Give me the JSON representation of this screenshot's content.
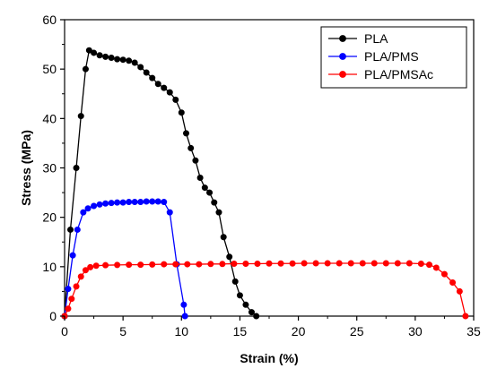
{
  "chart_data": {
    "type": "line",
    "title": "",
    "xlabel": "Strain (%)",
    "ylabel": "Stress (MPa)",
    "xlim": [
      0,
      35
    ],
    "ylim": [
      0,
      60
    ],
    "x_ticks": [
      "0",
      "5",
      "10",
      "15",
      "20",
      "25",
      "30",
      "35"
    ],
    "y_ticks": [
      "0",
      "10",
      "20",
      "30",
      "40",
      "50",
      "60"
    ],
    "grid": false,
    "legend_position": "top-right",
    "markers": "filled circles",
    "series": [
      {
        "name": "PLA",
        "color": "#000000",
        "points": [
          [
            0,
            0
          ],
          [
            0.5,
            17.5
          ],
          [
            1.0,
            30
          ],
          [
            1.4,
            40.5
          ],
          [
            1.8,
            50
          ],
          [
            2.1,
            53.8
          ],
          [
            2.5,
            53.3
          ],
          [
            3.0,
            52.8
          ],
          [
            3.5,
            52.5
          ],
          [
            4.0,
            52.3
          ],
          [
            4.5,
            52.0
          ],
          [
            5.0,
            51.9
          ],
          [
            5.5,
            51.7
          ],
          [
            6.0,
            51.3
          ],
          [
            6.5,
            50.4
          ],
          [
            7.0,
            49.3
          ],
          [
            7.5,
            48.2
          ],
          [
            8.0,
            47.0
          ],
          [
            8.5,
            46.2
          ],
          [
            9.0,
            45.3
          ],
          [
            9.5,
            43.8
          ],
          [
            10.0,
            41.2
          ],
          [
            10.4,
            37.0
          ],
          [
            10.8,
            34.0
          ],
          [
            11.2,
            31.5
          ],
          [
            11.6,
            28.0
          ],
          [
            12.0,
            26.0
          ],
          [
            12.4,
            25.0
          ],
          [
            12.8,
            23.0
          ],
          [
            13.2,
            21.0
          ],
          [
            13.6,
            16.0
          ],
          [
            14.1,
            12.0
          ],
          [
            14.6,
            7.0
          ],
          [
            15.0,
            4.2
          ],
          [
            15.5,
            2.3
          ],
          [
            16.0,
            0.8
          ],
          [
            16.4,
            0
          ]
        ]
      },
      {
        "name": "PLA/PMS",
        "color": "#0000ff",
        "points": [
          [
            0,
            0
          ],
          [
            0.3,
            5.5
          ],
          [
            0.7,
            12.3
          ],
          [
            1.1,
            17.5
          ],
          [
            1.6,
            21.0
          ],
          [
            2.0,
            21.8
          ],
          [
            2.5,
            22.3
          ],
          [
            3.0,
            22.6
          ],
          [
            3.5,
            22.8
          ],
          [
            4.0,
            22.9
          ],
          [
            4.5,
            23.0
          ],
          [
            5.0,
            23.0
          ],
          [
            5.5,
            23.1
          ],
          [
            6.0,
            23.1
          ],
          [
            6.5,
            23.1
          ],
          [
            7.0,
            23.2
          ],
          [
            7.5,
            23.2
          ],
          [
            8.0,
            23.2
          ],
          [
            8.5,
            23.1
          ],
          [
            9.0,
            21.0
          ],
          [
            9.6,
            10.5
          ],
          [
            10.2,
            2.3
          ],
          [
            10.3,
            0
          ]
        ]
      },
      {
        "name": "PLA/PMSAc",
        "color": "#ff0000",
        "points": [
          [
            0,
            0
          ],
          [
            0.3,
            1.5
          ],
          [
            0.6,
            3.5
          ],
          [
            1.0,
            6.0
          ],
          [
            1.4,
            8.0
          ],
          [
            1.8,
            9.3
          ],
          [
            2.2,
            9.9
          ],
          [
            2.7,
            10.2
          ],
          [
            3.5,
            10.3
          ],
          [
            4.5,
            10.35
          ],
          [
            5.5,
            10.4
          ],
          [
            6.5,
            10.4
          ],
          [
            7.5,
            10.45
          ],
          [
            8.5,
            10.5
          ],
          [
            9.5,
            10.5
          ],
          [
            10.5,
            10.5
          ],
          [
            11.5,
            10.5
          ],
          [
            12.5,
            10.55
          ],
          [
            13.5,
            10.55
          ],
          [
            14.5,
            10.6
          ],
          [
            15.5,
            10.6
          ],
          [
            16.5,
            10.6
          ],
          [
            17.5,
            10.65
          ],
          [
            18.5,
            10.65
          ],
          [
            19.5,
            10.65
          ],
          [
            20.5,
            10.7
          ],
          [
            21.5,
            10.7
          ],
          [
            22.5,
            10.7
          ],
          [
            23.5,
            10.7
          ],
          [
            24.5,
            10.7
          ],
          [
            25.5,
            10.7
          ],
          [
            26.5,
            10.7
          ],
          [
            27.5,
            10.7
          ],
          [
            28.5,
            10.7
          ],
          [
            29.5,
            10.7
          ],
          [
            30.5,
            10.6
          ],
          [
            31.2,
            10.4
          ],
          [
            31.8,
            9.8
          ],
          [
            32.5,
            8.5
          ],
          [
            33.2,
            6.8
          ],
          [
            33.8,
            5.0
          ],
          [
            34.3,
            0
          ]
        ]
      }
    ]
  }
}
